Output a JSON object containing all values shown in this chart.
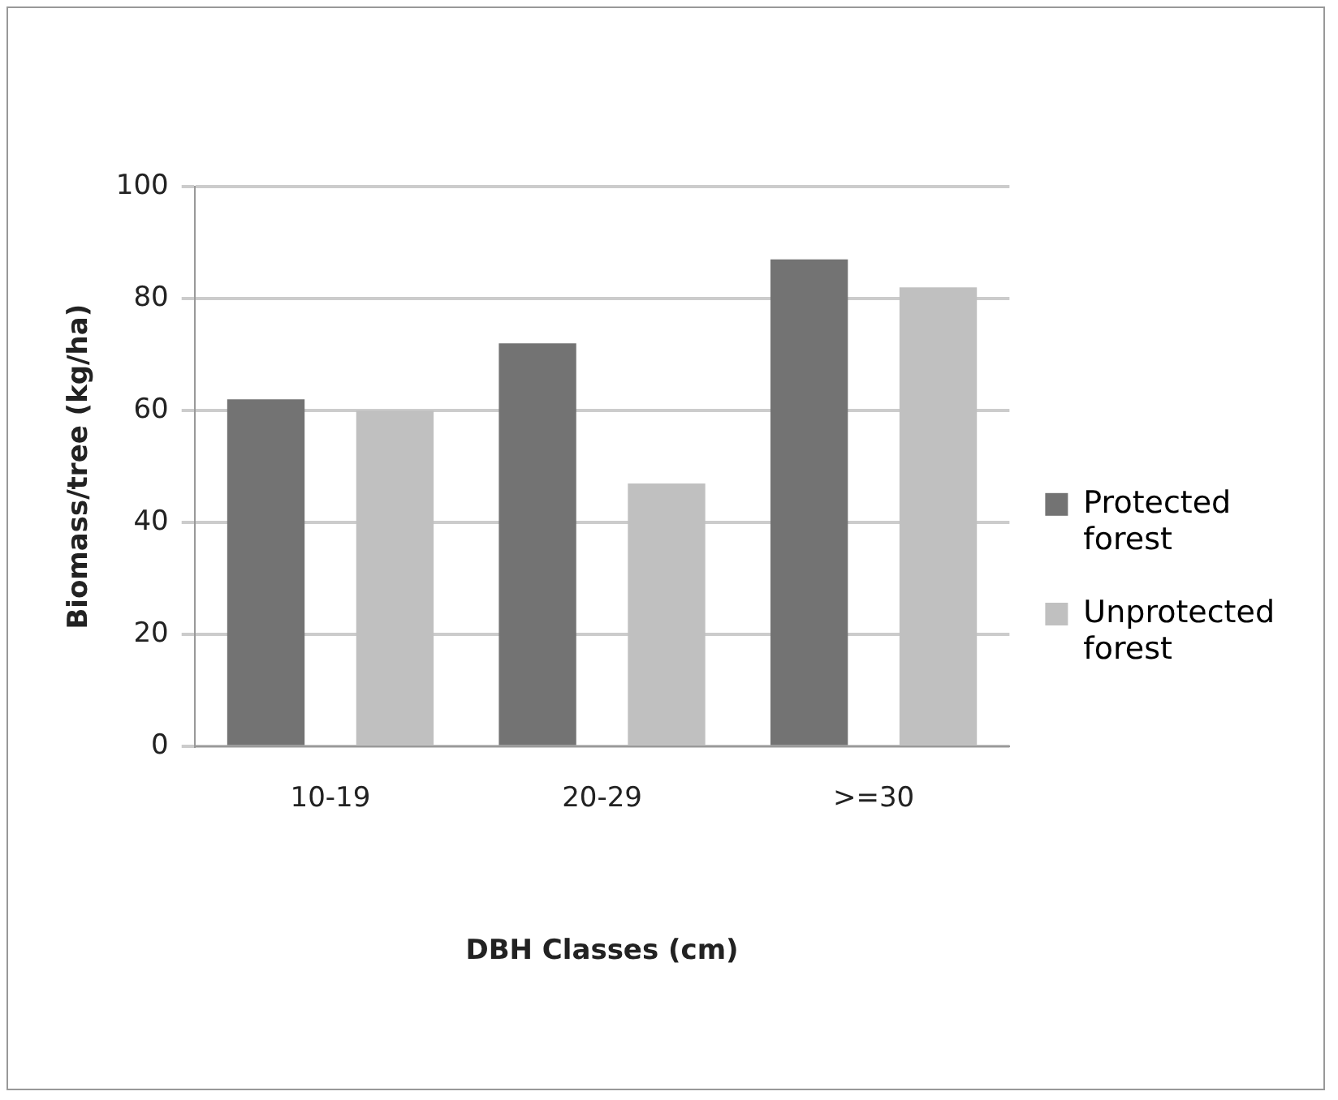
{
  "chart_data": {
    "type": "bar",
    "xlabel": "DBH Classes (cm)",
    "ylabel": "Biomass/tree (kg/ha)",
    "categories": [
      "10-19",
      "20-29",
      ">=30"
    ],
    "series": [
      {
        "name": "Protected forest",
        "color": "#737373",
        "values": [
          62,
          72,
          87
        ]
      },
      {
        "name": "Unprotected forest",
        "color": "#c0c0c0",
        "values": [
          60,
          47,
          82
        ]
      }
    ],
    "ylim": [
      0,
      100
    ],
    "yticks": [
      0,
      20,
      40,
      60,
      80,
      100
    ],
    "grid": "y",
    "legend": "right"
  }
}
